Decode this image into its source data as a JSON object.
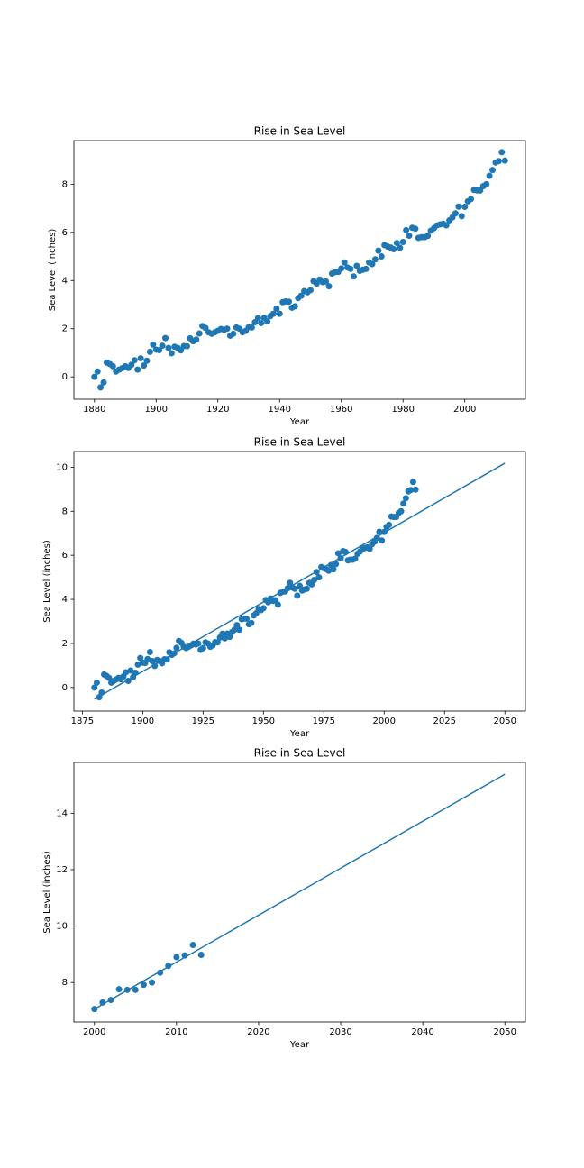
{
  "chart_data": [
    {
      "type": "scatter",
      "title": "Rise in Sea Level",
      "x_label": "Year",
      "y_label": "Sea Level (inches)",
      "xlim": [
        1873.35,
        2019.65
      ],
      "ylim": [
        -0.93,
        9.81
      ],
      "xticks": [
        1880,
        1900,
        1920,
        1940,
        1960,
        1980,
        2000
      ],
      "yticks": [
        0,
        2,
        4,
        6,
        8
      ],
      "series": [
        {
          "type": "scatter",
          "color": "#1f77b4",
          "x": [
            1880,
            1881,
            1882,
            1883,
            1884,
            1885,
            1886,
            1887,
            1888,
            1889,
            1890,
            1891,
            1892,
            1893,
            1894,
            1895,
            1896,
            1897,
            1898,
            1899,
            1900,
            1901,
            1902,
            1903,
            1904,
            1905,
            1906,
            1907,
            1908,
            1909,
            1910,
            1911,
            1912,
            1913,
            1914,
            1915,
            1916,
            1917,
            1918,
            1919,
            1920,
            1921,
            1922,
            1923,
            1924,
            1925,
            1926,
            1927,
            1928,
            1929,
            1930,
            1931,
            1932,
            1933,
            1934,
            1935,
            1936,
            1937,
            1938,
            1939,
            1940,
            1941,
            1942,
            1943,
            1944,
            1945,
            1946,
            1947,
            1948,
            1949,
            1950,
            1951,
            1952,
            1953,
            1954,
            1955,
            1956,
            1957,
            1958,
            1959,
            1960,
            1961,
            1962,
            1963,
            1964,
            1965,
            1966,
            1967,
            1968,
            1969,
            1970,
            1971,
            1972,
            1973,
            1974,
            1975,
            1976,
            1977,
            1978,
            1979,
            1980,
            1981,
            1982,
            1983,
            1984,
            1985,
            1986,
            1987,
            1988,
            1989,
            1990,
            1991,
            1992,
            1993,
            1994,
            1995,
            1996,
            1997,
            1998,
            1999,
            2000,
            2001,
            2002,
            2003,
            2004,
            2005,
            2006,
            2007,
            2008,
            2009,
            2010,
            2011,
            2012,
            2013
          ],
          "values": [
            0.0,
            0.22,
            -0.44,
            -0.23,
            0.59,
            0.53,
            0.44,
            0.22,
            0.3,
            0.36,
            0.44,
            0.37,
            0.5,
            0.69,
            0.3,
            0.77,
            0.47,
            0.67,
            1.04,
            1.34,
            1.13,
            1.11,
            1.29,
            1.61,
            1.2,
            0.98,
            1.25,
            1.2,
            1.1,
            1.28,
            1.27,
            1.6,
            1.48,
            1.55,
            1.8,
            2.11,
            2.03,
            1.85,
            1.79,
            1.85,
            1.91,
            1.99,
            1.95,
            2.0,
            1.71,
            1.79,
            2.05,
            2.0,
            1.85,
            1.91,
            2.06,
            2.05,
            2.27,
            2.44,
            2.23,
            2.45,
            2.3,
            2.52,
            2.62,
            2.83,
            2.62,
            3.1,
            3.13,
            3.12,
            2.87,
            2.93,
            3.27,
            3.37,
            3.56,
            3.51,
            3.6,
            3.97,
            3.87,
            4.04,
            3.93,
            3.96,
            3.76,
            4.29,
            4.35,
            4.36,
            4.5,
            4.75,
            4.54,
            4.48,
            4.17,
            4.61,
            4.4,
            4.45,
            4.48,
            4.75,
            4.68,
            4.88,
            5.24,
            5.0,
            5.47,
            5.41,
            5.37,
            5.3,
            5.56,
            5.36,
            5.6,
            6.09,
            5.86,
            6.19,
            6.15,
            5.77,
            5.8,
            5.8,
            5.85,
            6.07,
            6.17,
            6.29,
            6.33,
            6.36,
            6.29,
            6.5,
            6.62,
            6.79,
            7.07,
            6.67,
            7.06,
            7.29,
            7.38,
            7.76,
            7.74,
            7.74,
            7.92,
            8.0,
            8.35,
            8.59,
            8.9,
            8.96,
            9.33,
            8.98
          ]
        }
      ]
    },
    {
      "type": "scatter",
      "title": "Rise in Sea Level",
      "x_label": "Year",
      "y_label": "Sea Level (inches)",
      "xlim": [
        1871.5,
        2058.5
      ],
      "ylim": [
        -1.07,
        10.71
      ],
      "xticks": [
        1875,
        1900,
        1925,
        1950,
        1975,
        2000,
        2025,
        2050
      ],
      "yticks": [
        0,
        2,
        4,
        6,
        8,
        10
      ],
      "series": [
        {
          "type": "scatter",
          "color": "#1f77b4",
          "x": [
            1880,
            1881,
            1882,
            1883,
            1884,
            1885,
            1886,
            1887,
            1888,
            1889,
            1890,
            1891,
            1892,
            1893,
            1894,
            1895,
            1896,
            1897,
            1898,
            1899,
            1900,
            1901,
            1902,
            1903,
            1904,
            1905,
            1906,
            1907,
            1908,
            1909,
            1910,
            1911,
            1912,
            1913,
            1914,
            1915,
            1916,
            1917,
            1918,
            1919,
            1920,
            1921,
            1922,
            1923,
            1924,
            1925,
            1926,
            1927,
            1928,
            1929,
            1930,
            1931,
            1932,
            1933,
            1934,
            1935,
            1936,
            1937,
            1938,
            1939,
            1940,
            1941,
            1942,
            1943,
            1944,
            1945,
            1946,
            1947,
            1948,
            1949,
            1950,
            1951,
            1952,
            1953,
            1954,
            1955,
            1956,
            1957,
            1958,
            1959,
            1960,
            1961,
            1962,
            1963,
            1964,
            1965,
            1966,
            1967,
            1968,
            1969,
            1970,
            1971,
            1972,
            1973,
            1974,
            1975,
            1976,
            1977,
            1978,
            1979,
            1980,
            1981,
            1982,
            1983,
            1984,
            1985,
            1986,
            1987,
            1988,
            1989,
            1990,
            1991,
            1992,
            1993,
            1994,
            1995,
            1996,
            1997,
            1998,
            1999,
            2000,
            2001,
            2002,
            2003,
            2004,
            2005,
            2006,
            2007,
            2008,
            2009,
            2010,
            2011,
            2012,
            2013
          ],
          "values": [
            0.0,
            0.22,
            -0.44,
            -0.23,
            0.59,
            0.53,
            0.44,
            0.22,
            0.3,
            0.36,
            0.44,
            0.37,
            0.5,
            0.69,
            0.3,
            0.77,
            0.47,
            0.67,
            1.04,
            1.34,
            1.13,
            1.11,
            1.29,
            1.61,
            1.2,
            0.98,
            1.25,
            1.2,
            1.1,
            1.28,
            1.27,
            1.6,
            1.48,
            1.55,
            1.8,
            2.11,
            2.03,
            1.85,
            1.79,
            1.85,
            1.91,
            1.99,
            1.95,
            2.0,
            1.71,
            1.79,
            2.05,
            2.0,
            1.85,
            1.91,
            2.06,
            2.05,
            2.27,
            2.44,
            2.23,
            2.45,
            2.3,
            2.52,
            2.62,
            2.83,
            2.62,
            3.1,
            3.13,
            3.12,
            2.87,
            2.93,
            3.27,
            3.37,
            3.56,
            3.51,
            3.6,
            3.97,
            3.87,
            4.04,
            3.93,
            3.96,
            3.76,
            4.29,
            4.35,
            4.36,
            4.5,
            4.75,
            4.54,
            4.48,
            4.17,
            4.61,
            4.4,
            4.45,
            4.48,
            4.75,
            4.68,
            4.88,
            5.24,
            5.0,
            5.47,
            5.41,
            5.37,
            5.3,
            5.56,
            5.36,
            5.6,
            6.09,
            5.86,
            6.19,
            6.15,
            5.77,
            5.8,
            5.8,
            5.85,
            6.07,
            6.17,
            6.29,
            6.33,
            6.36,
            6.29,
            6.5,
            6.62,
            6.79,
            7.07,
            6.67,
            7.06,
            7.29,
            7.38,
            7.76,
            7.74,
            7.74,
            7.92,
            8.0,
            8.35,
            8.59,
            8.9,
            8.96,
            9.33,
            8.98
          ]
        },
        {
          "type": "line",
          "color": "#1f77b4",
          "x": [
            1880,
            2050
          ],
          "values": [
            -0.53,
            10.18
          ]
        }
      ]
    },
    {
      "type": "scatter",
      "title": "Rise in Sea Level",
      "x_label": "Year",
      "y_label": "Sea Level (inches)",
      "xlim": [
        1997.5,
        2052.5
      ],
      "ylim": [
        6.6,
        15.8
      ],
      "xticks": [
        2000,
        2010,
        2020,
        2030,
        2040,
        2050
      ],
      "yticks": [
        8,
        10,
        12,
        14
      ],
      "series": [
        {
          "type": "scatter",
          "color": "#1f77b4",
          "x": [
            2000,
            2001,
            2002,
            2003,
            2004,
            2005,
            2006,
            2007,
            2008,
            2009,
            2010,
            2011,
            2012,
            2013
          ],
          "values": [
            7.06,
            7.29,
            7.38,
            7.76,
            7.74,
            7.74,
            7.92,
            8.0,
            8.35,
            8.59,
            8.9,
            8.96,
            9.33,
            8.98
          ]
        },
        {
          "type": "line",
          "color": "#1f77b4",
          "x": [
            2000,
            2050
          ],
          "values": [
            7.06,
            15.38
          ]
        }
      ]
    }
  ]
}
